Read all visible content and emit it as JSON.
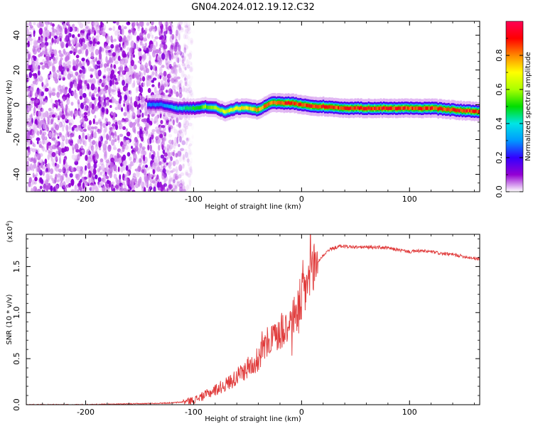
{
  "title": "GN04.2024.012.19.12.C32",
  "chart_data": [
    {
      "type": "heatmap",
      "name": "spectrogram",
      "xlabel": "Height of straight line (km)",
      "ylabel": "Frequency (Hz)",
      "xlim": [
        -255,
        165
      ],
      "ylim": [
        -50,
        48
      ],
      "xticks": [
        -200,
        -100,
        0,
        100
      ],
      "xtick_labels": [
        "-200",
        "-100",
        "0",
        "100"
      ],
      "yticks": [
        -40,
        -20,
        0,
        20,
        40
      ],
      "ytick_labels": [
        "-40",
        "-20",
        "0",
        "20",
        "40"
      ],
      "colorbar": {
        "label": "Normalized spectral amplitude",
        "range": [
          0,
          1
        ],
        "ticks": [
          0.0,
          0.2,
          0.4,
          0.6,
          0.8
        ],
        "tick_labels": [
          "0.0",
          "0.2",
          "0.4",
          "0.6",
          "0.8"
        ],
        "colors": [
          "#ffffff",
          "#9400d3",
          "#3300ff",
          "#0099ff",
          "#00e5e5",
          "#00dd00",
          "#aaff00",
          "#ffff00",
          "#ff8800",
          "#ff0000",
          "#ff0055"
        ]
      },
      "noise_region": {
        "x_from": -255,
        "x_to": -110,
        "amplitude": 0.1
      },
      "carrier_line": {
        "x": [
          -143,
          -130,
          -115,
          -100,
          -90,
          -80,
          -72,
          -60,
          -50,
          -40,
          -30,
          -20,
          -10,
          0,
          10,
          20,
          40,
          60,
          80,
          100,
          120,
          140,
          165
        ],
        "frequency": [
          0,
          0,
          -2,
          -2,
          -1,
          -2,
          -4,
          -2,
          -2,
          -3,
          1,
          1,
          1,
          0,
          -1,
          -1,
          -2,
          -2,
          -2,
          -2,
          -2,
          -3,
          -4
        ],
        "amplitude": [
          0.3,
          0.3,
          0.45,
          0.55,
          0.6,
          0.65,
          0.7,
          0.75,
          0.8,
          0.85,
          0.9,
          0.95,
          0.95,
          0.95,
          0.95,
          0.95,
          0.95,
          0.95,
          0.95,
          0.95,
          0.95,
          0.95,
          0.95
        ]
      }
    },
    {
      "type": "line",
      "name": "snr",
      "color": "#e03a3a",
      "xlabel": "Height of straight line (km)",
      "ylabel": "SNR (10 * v/v)",
      "yscale_label": "(x10",
      "yscale_exponent": "4",
      "yscale_suffix": ")",
      "xlim": [
        -255,
        165
      ],
      "ylim": [
        0,
        1.85
      ],
      "xticks": [
        -200,
        -100,
        0,
        100
      ],
      "xtick_labels": [
        "-200",
        "-100",
        "0",
        "100"
      ],
      "yticks": [
        0.0,
        0.5,
        1.0,
        1.5
      ],
      "ytick_labels": [
        "0.0",
        "0.5",
        "1.0",
        "1.5"
      ],
      "series": [
        {
          "name": "SNR",
          "x": [
            -255,
            -200,
            -150,
            -120,
            -110,
            -100,
            -90,
            -80,
            -70,
            -60,
            -50,
            -40,
            -35,
            -30,
            -25,
            -20,
            -15,
            -10,
            -5,
            0,
            5,
            10,
            15,
            20,
            25,
            30,
            35,
            40,
            50,
            60,
            70,
            80,
            90,
            100,
            110,
            120,
            130,
            140,
            150,
            165
          ],
          "y": [
            0.0,
            0.0,
            0.01,
            0.02,
            0.03,
            0.05,
            0.1,
            0.16,
            0.22,
            0.3,
            0.4,
            0.5,
            0.6,
            0.7,
            0.75,
            0.8,
            0.86,
            0.92,
            1.0,
            1.15,
            1.3,
            1.45,
            1.55,
            1.62,
            1.68,
            1.7,
            1.72,
            1.72,
            1.71,
            1.71,
            1.71,
            1.7,
            1.68,
            1.66,
            1.67,
            1.66,
            1.64,
            1.63,
            1.61,
            1.58
          ]
        }
      ]
    }
  ]
}
